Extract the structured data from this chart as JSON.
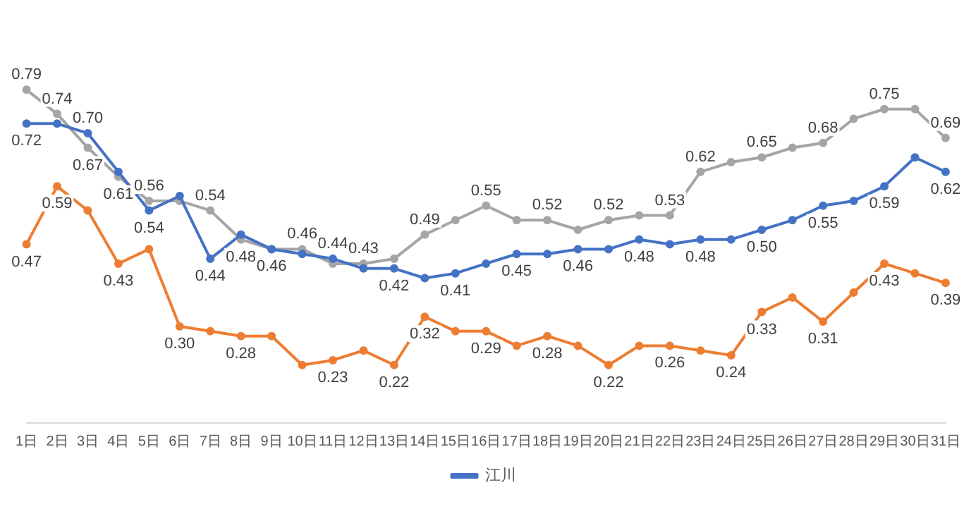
{
  "chart_data": {
    "type": "line",
    "categories": [
      "1日",
      "2日",
      "3日",
      "4日",
      "5日",
      "6日",
      "7日",
      "8日",
      "9日",
      "10日",
      "11日",
      "12日",
      "13日",
      "14日",
      "15日",
      "16日",
      "17日",
      "18日",
      "19日",
      "20日",
      "21日",
      "22日",
      "23日",
      "24日",
      "25日",
      "26日",
      "27日",
      "28日",
      "29日",
      "30日",
      "31日"
    ],
    "series": [
      {
        "name": "江川",
        "color": "#4472c4",
        "values": [
          0.72,
          0.72,
          0.7,
          0.62,
          0.54,
          0.57,
          0.44,
          0.49,
          0.46,
          0.45,
          0.44,
          0.42,
          0.42,
          0.4,
          0.41,
          0.43,
          0.45,
          0.45,
          0.46,
          0.46,
          0.48,
          0.47,
          0.48,
          0.48,
          0.5,
          0.52,
          0.55,
          0.56,
          0.59,
          0.65,
          0.62
        ],
        "value_labels": [
          "0.72",
          null,
          "0.70",
          null,
          "0.54",
          null,
          "0.44",
          null,
          "0.46",
          null,
          "0.44",
          null,
          "0.42",
          null,
          "0.41",
          null,
          "0.45",
          null,
          "0.46",
          null,
          "0.48",
          null,
          "0.48",
          null,
          "0.50",
          null,
          "0.55",
          null,
          "0.59",
          null,
          "0.62"
        ]
      },
      {
        "color": "#ed7d31",
        "values": [
          0.47,
          0.59,
          0.54,
          0.43,
          0.46,
          0.3,
          0.29,
          0.28,
          0.28,
          0.22,
          0.23,
          0.25,
          0.22,
          0.32,
          0.29,
          0.29,
          0.26,
          0.28,
          0.26,
          0.22,
          0.26,
          0.26,
          0.25,
          0.24,
          0.33,
          0.36,
          0.31,
          0.37,
          0.43,
          0.41,
          0.39
        ],
        "value_labels": [
          "0.47",
          "0.59",
          null,
          "0.43",
          null,
          "0.30",
          null,
          "0.28",
          null,
          null,
          "0.23",
          null,
          "0.22",
          "0.32",
          null,
          "0.29",
          null,
          "0.28",
          null,
          "0.22",
          null,
          "0.26",
          null,
          "0.24",
          "0.33",
          null,
          "0.31",
          null,
          "0.43",
          null,
          "0.39"
        ]
      },
      {
        "color": "#a5a5a5",
        "values": [
          0.79,
          0.74,
          0.67,
          0.61,
          0.56,
          0.56,
          0.54,
          0.48,
          0.46,
          0.46,
          0.43,
          0.43,
          0.44,
          0.49,
          0.52,
          0.55,
          0.52,
          0.52,
          0.5,
          0.52,
          0.53,
          0.53,
          0.62,
          0.64,
          0.65,
          0.67,
          0.68,
          0.73,
          0.75,
          0.75,
          0.69
        ],
        "value_labels": [
          "0.79",
          "0.74",
          "0.67",
          "0.61",
          "0.56",
          null,
          "0.54",
          "0.48",
          null,
          "0.46",
          null,
          "0.43",
          null,
          "0.49",
          null,
          "0.55",
          null,
          "0.52",
          null,
          "0.52",
          null,
          "0.53",
          "0.62",
          null,
          "0.65",
          null,
          "0.68",
          null,
          "0.75",
          null,
          "0.69"
        ]
      }
    ],
    "marker": "circle",
    "line_style": "solid",
    "legend": "bottom",
    "grid": false
  }
}
